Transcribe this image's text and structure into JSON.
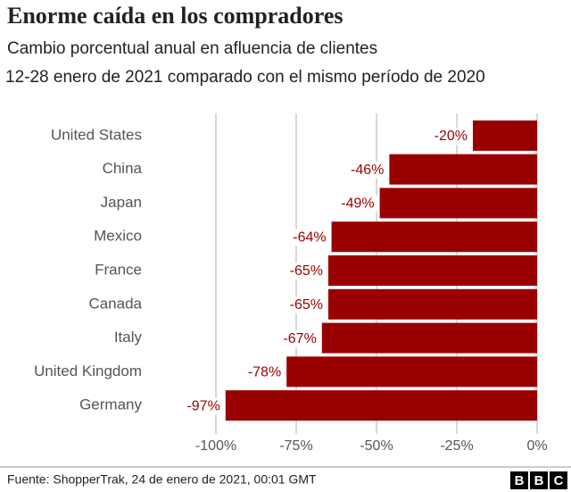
{
  "chart_data": {
    "type": "bar",
    "orientation": "horizontal",
    "title": "Enorme caída en los compradores",
    "subtitle": "Cambio porcentual anual en afluencia de clientes",
    "note": "12-28 enero de 2021 comparado con el mismo período de 2020",
    "categories": [
      "United States",
      "China",
      "Japan",
      "Mexico",
      "France",
      "Canada",
      "Italy",
      "United Kingdom",
      "Germany"
    ],
    "values": [
      -20,
      -46,
      -49,
      -64,
      -65,
      -65,
      -67,
      -78,
      -97
    ],
    "value_labels": [
      "-20%",
      "-46%",
      "-49%",
      "-64%",
      "-65%",
      "-65%",
      "-67%",
      "-78%",
      "-97%"
    ],
    "color": "#990000",
    "xlim": [
      -120,
      5
    ],
    "xticks": [
      {
        "value": -100,
        "label": "-100%"
      },
      {
        "value": -75,
        "label": "-75%"
      },
      {
        "value": -50,
        "label": "-50%"
      },
      {
        "value": -25,
        "label": "-25%"
      },
      {
        "value": 0,
        "label": "0%"
      }
    ],
    "grid": true,
    "source": "Fuente: ShopperTrak, 24 de enero de 2021, 00:01 GMT",
    "logo": [
      "B",
      "B",
      "C"
    ]
  }
}
